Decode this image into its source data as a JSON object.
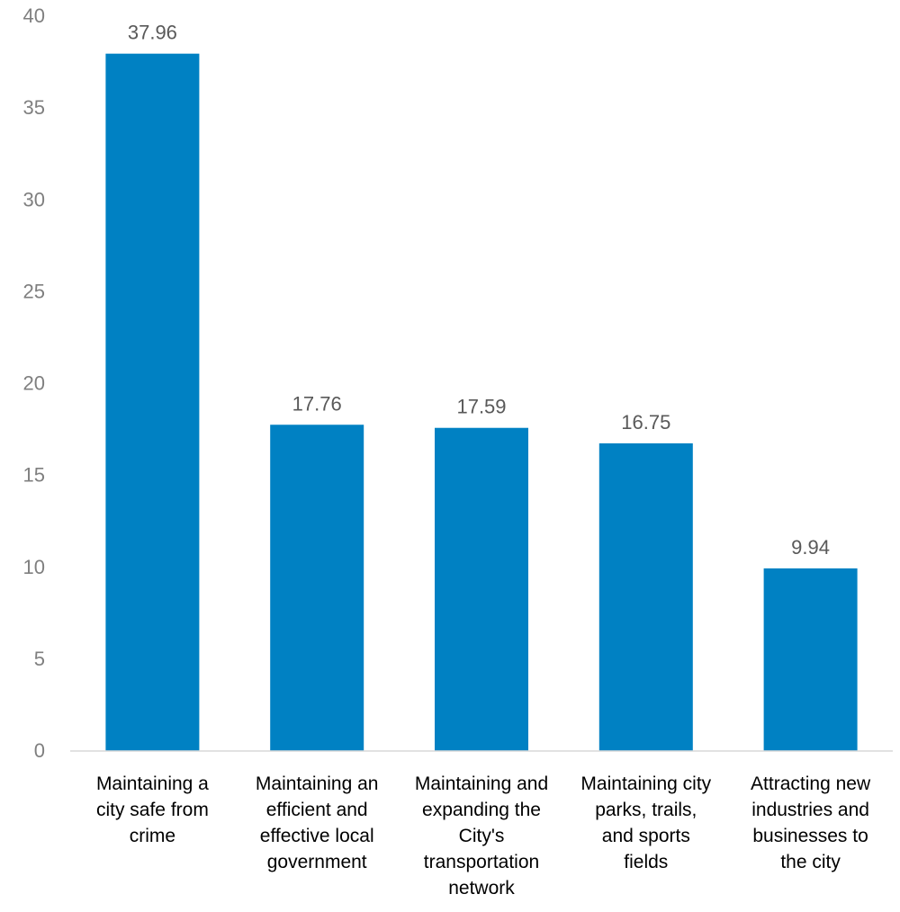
{
  "chart_data": {
    "type": "bar",
    "categories": [
      [
        "Maintaining a",
        "city safe from",
        "crime"
      ],
      [
        "Maintaining an",
        "efficient and",
        "effective local",
        "government"
      ],
      [
        "Maintaining and",
        "expanding the",
        "City's",
        "transportation",
        "network"
      ],
      [
        "Maintaining city",
        "parks, trails,",
        "and sports",
        "fields"
      ],
      [
        "Attracting new",
        "industries and",
        "businesses to",
        "the city"
      ]
    ],
    "values": [
      37.96,
      17.76,
      17.59,
      16.75,
      9.94
    ],
    "data_labels": [
      "37.96",
      "17.76",
      "17.59",
      "16.75",
      "9.94"
    ],
    "ylim": [
      0,
      40
    ],
    "yticks": [
      0,
      5,
      10,
      15,
      20,
      25,
      30,
      35,
      40
    ],
    "bar_color": "#0081c3",
    "grid": false,
    "title": "",
    "xlabel": "",
    "ylabel": ""
  }
}
